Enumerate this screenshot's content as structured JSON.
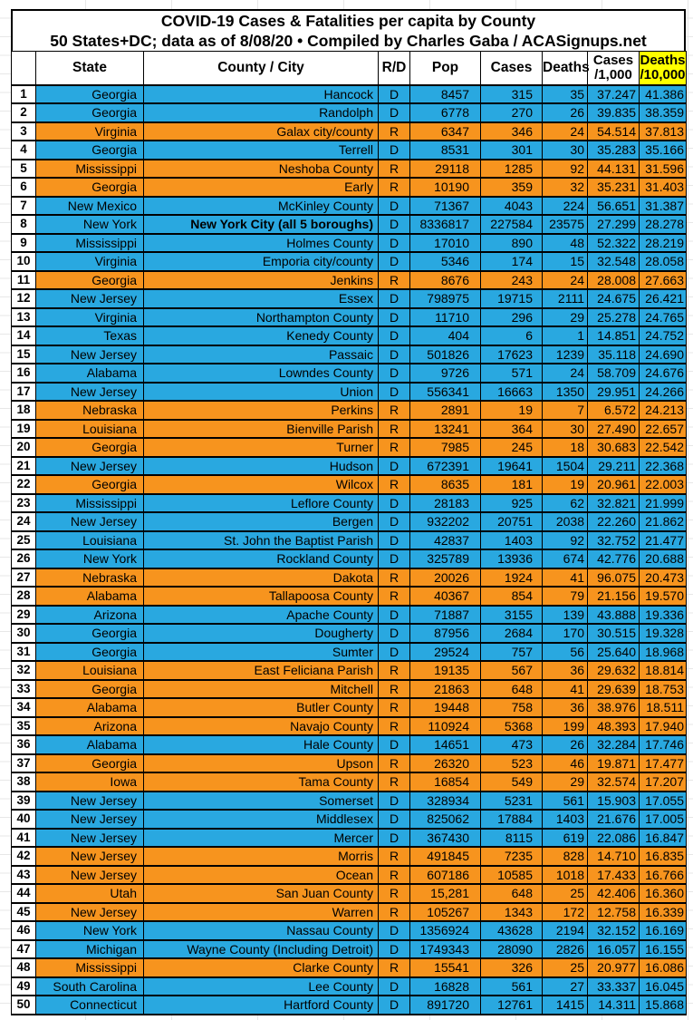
{
  "title": {
    "line1": "COVID-19 Cases & Fatalities per capita by County",
    "line2": "50 States+DC; data as of 8/08/20  • Compiled by Charles Gaba / ACASignups.net"
  },
  "header": {
    "rank": "",
    "state": "State",
    "county": "County / City",
    "rd": "R/D",
    "pop": "Pop",
    "cases": "Cases",
    "deaths": "Deaths",
    "cases_rate_line1": "Cases",
    "cases_rate_line2": "/1,000",
    "deaths_rate_line1": "Deaths",
    "deaths_rate_line2": "/10,000"
  },
  "colors": {
    "dem_blue": "#29a8e0",
    "rep_orange": "#f7941e",
    "highlight_yellow": "#ffff00"
  },
  "chart_data": {
    "type": "table",
    "row_schema": [
      "rank",
      "state",
      "county_city",
      "r_d",
      "pop",
      "cases",
      "deaths",
      "cases_per_1000",
      "deaths_per_10000"
    ],
    "bold_county_ranks": [
      "8"
    ],
    "rows": [
      [
        "1",
        "Georgia",
        "Hancock",
        "D",
        "8457",
        "315",
        "35",
        "37.247",
        "41.386"
      ],
      [
        "2",
        "Georgia",
        "Randolph",
        "D",
        "6778",
        "270",
        "26",
        "39.835",
        "38.359"
      ],
      [
        "3",
        "Virginia",
        "Galax city/county",
        "R",
        "6347",
        "346",
        "24",
        "54.514",
        "37.813"
      ],
      [
        "4",
        "Georgia",
        "Terrell",
        "D",
        "8531",
        "301",
        "30",
        "35.283",
        "35.166"
      ],
      [
        "5",
        "Mississippi",
        "Neshoba County",
        "R",
        "29118",
        "1285",
        "92",
        "44.131",
        "31.596"
      ],
      [
        "6",
        "Georgia",
        "Early",
        "R",
        "10190",
        "359",
        "32",
        "35.231",
        "31.403"
      ],
      [
        "7",
        "New Mexico",
        "McKinley County",
        "D",
        "71367",
        "4043",
        "224",
        "56.651",
        "31.387"
      ],
      [
        "8",
        "New York",
        "New York City (all 5 boroughs)",
        "D",
        "8336817",
        "227584",
        "23575",
        "27.299",
        "28.278"
      ],
      [
        "9",
        "Mississippi",
        "Holmes County",
        "D",
        "17010",
        "890",
        "48",
        "52.322",
        "28.219"
      ],
      [
        "10",
        "Virginia",
        "Emporia city/county",
        "D",
        "5346",
        "174",
        "15",
        "32.548",
        "28.058"
      ],
      [
        "11",
        "Georgia",
        "Jenkins",
        "R",
        "8676",
        "243",
        "24",
        "28.008",
        "27.663"
      ],
      [
        "12",
        "New Jersey",
        "Essex",
        "D",
        "798975",
        "19715",
        "2111",
        "24.675",
        "26.421"
      ],
      [
        "13",
        "Virginia",
        "Northampton County",
        "D",
        "11710",
        "296",
        "29",
        "25.278",
        "24.765"
      ],
      [
        "14",
        "Texas",
        "Kenedy County",
        "D",
        "404",
        "6",
        "1",
        "14.851",
        "24.752"
      ],
      [
        "15",
        "New Jersey",
        "Passaic",
        "D",
        "501826",
        "17623",
        "1239",
        "35.118",
        "24.690"
      ],
      [
        "16",
        "Alabama",
        "Lowndes County",
        "D",
        "9726",
        "571",
        "24",
        "58.709",
        "24.676"
      ],
      [
        "17",
        "New Jersey",
        "Union",
        "D",
        "556341",
        "16663",
        "1350",
        "29.951",
        "24.266"
      ],
      [
        "18",
        "Nebraska",
        "Perkins",
        "R",
        "2891",
        "19",
        "7",
        "6.572",
        "24.213"
      ],
      [
        "19",
        "Louisiana",
        "Bienville Parish",
        "R",
        "13241",
        "364",
        "30",
        "27.490",
        "22.657"
      ],
      [
        "20",
        "Georgia",
        "Turner",
        "R",
        "7985",
        "245",
        "18",
        "30.683",
        "22.542"
      ],
      [
        "21",
        "New Jersey",
        "Hudson",
        "D",
        "672391",
        "19641",
        "1504",
        "29.211",
        "22.368"
      ],
      [
        "22",
        "Georgia",
        "Wilcox",
        "R",
        "8635",
        "181",
        "19",
        "20.961",
        "22.003"
      ],
      [
        "23",
        "Mississippi",
        "Leflore County",
        "D",
        "28183",
        "925",
        "62",
        "32.821",
        "21.999"
      ],
      [
        "24",
        "New Jersey",
        "Bergen",
        "D",
        "932202",
        "20751",
        "2038",
        "22.260",
        "21.862"
      ],
      [
        "25",
        "Louisiana",
        "St. John the Baptist Parish",
        "D",
        "42837",
        "1403",
        "92",
        "32.752",
        "21.477"
      ],
      [
        "26",
        "New York",
        "Rockland County",
        "D",
        "325789",
        "13936",
        "674",
        "42.776",
        "20.688"
      ],
      [
        "27",
        "Nebraska",
        "Dakota",
        "R",
        "20026",
        "1924",
        "41",
        "96.075",
        "20.473"
      ],
      [
        "28",
        "Alabama",
        "Tallapoosa County",
        "R",
        "40367",
        "854",
        "79",
        "21.156",
        "19.570"
      ],
      [
        "29",
        "Arizona",
        "Apache County",
        "D",
        "71887",
        "3155",
        "139",
        "43.888",
        "19.336"
      ],
      [
        "30",
        "Georgia",
        "Dougherty",
        "D",
        "87956",
        "2684",
        "170",
        "30.515",
        "19.328"
      ],
      [
        "31",
        "Georgia",
        "Sumter",
        "D",
        "29524",
        "757",
        "56",
        "25.640",
        "18.968"
      ],
      [
        "32",
        "Louisiana",
        "East Feliciana Parish",
        "R",
        "19135",
        "567",
        "36",
        "29.632",
        "18.814"
      ],
      [
        "33",
        "Georgia",
        "Mitchell",
        "R",
        "21863",
        "648",
        "41",
        "29.639",
        "18.753"
      ],
      [
        "34",
        "Alabama",
        "Butler County",
        "R",
        "19448",
        "758",
        "36",
        "38.976",
        "18.511"
      ],
      [
        "35",
        "Arizona",
        "Navajo County",
        "R",
        "110924",
        "5368",
        "199",
        "48.393",
        "17.940"
      ],
      [
        "36",
        "Alabama",
        "Hale County",
        "D",
        "14651",
        "473",
        "26",
        "32.284",
        "17.746"
      ],
      [
        "37",
        "Georgia",
        "Upson",
        "R",
        "26320",
        "523",
        "46",
        "19.871",
        "17.477"
      ],
      [
        "38",
        "Iowa",
        "Tama County",
        "R",
        "16854",
        "549",
        "29",
        "32.574",
        "17.207"
      ],
      [
        "39",
        "New Jersey",
        "Somerset",
        "D",
        "328934",
        "5231",
        "561",
        "15.903",
        "17.055"
      ],
      [
        "40",
        "New Jersey",
        "Middlesex",
        "D",
        "825062",
        "17884",
        "1403",
        "21.676",
        "17.005"
      ],
      [
        "41",
        "New Jersey",
        "Mercer",
        "D",
        "367430",
        "8115",
        "619",
        "22.086",
        "16.847"
      ],
      [
        "42",
        "New Jersey",
        "Morris",
        "R",
        "491845",
        "7235",
        "828",
        "14.710",
        "16.835"
      ],
      [
        "43",
        "New Jersey",
        "Ocean",
        "R",
        "607186",
        "10585",
        "1018",
        "17.433",
        "16.766"
      ],
      [
        "44",
        "Utah",
        "San Juan County",
        "R",
        "15,281",
        "648",
        "25",
        "42.406",
        "16.360"
      ],
      [
        "45",
        "New Jersey",
        "Warren",
        "R",
        "105267",
        "1343",
        "172",
        "12.758",
        "16.339"
      ],
      [
        "46",
        "New York",
        "Nassau County",
        "D",
        "1356924",
        "43628",
        "2194",
        "32.152",
        "16.169"
      ],
      [
        "47",
        "Michigan",
        "Wayne County (Including Detroit)",
        "D",
        "1749343",
        "28090",
        "2826",
        "16.057",
        "16.155"
      ],
      [
        "48",
        "Mississippi",
        "Clarke County",
        "R",
        "15541",
        "326",
        "25",
        "20.977",
        "16.086"
      ],
      [
        "49",
        "South Carolina",
        "Lee County",
        "D",
        "16828",
        "561",
        "27",
        "33.337",
        "16.045"
      ],
      [
        "50",
        "Connecticut",
        "Hartford County",
        "D",
        "891720",
        "12761",
        "1415",
        "14.311",
        "15.868"
      ]
    ]
  }
}
